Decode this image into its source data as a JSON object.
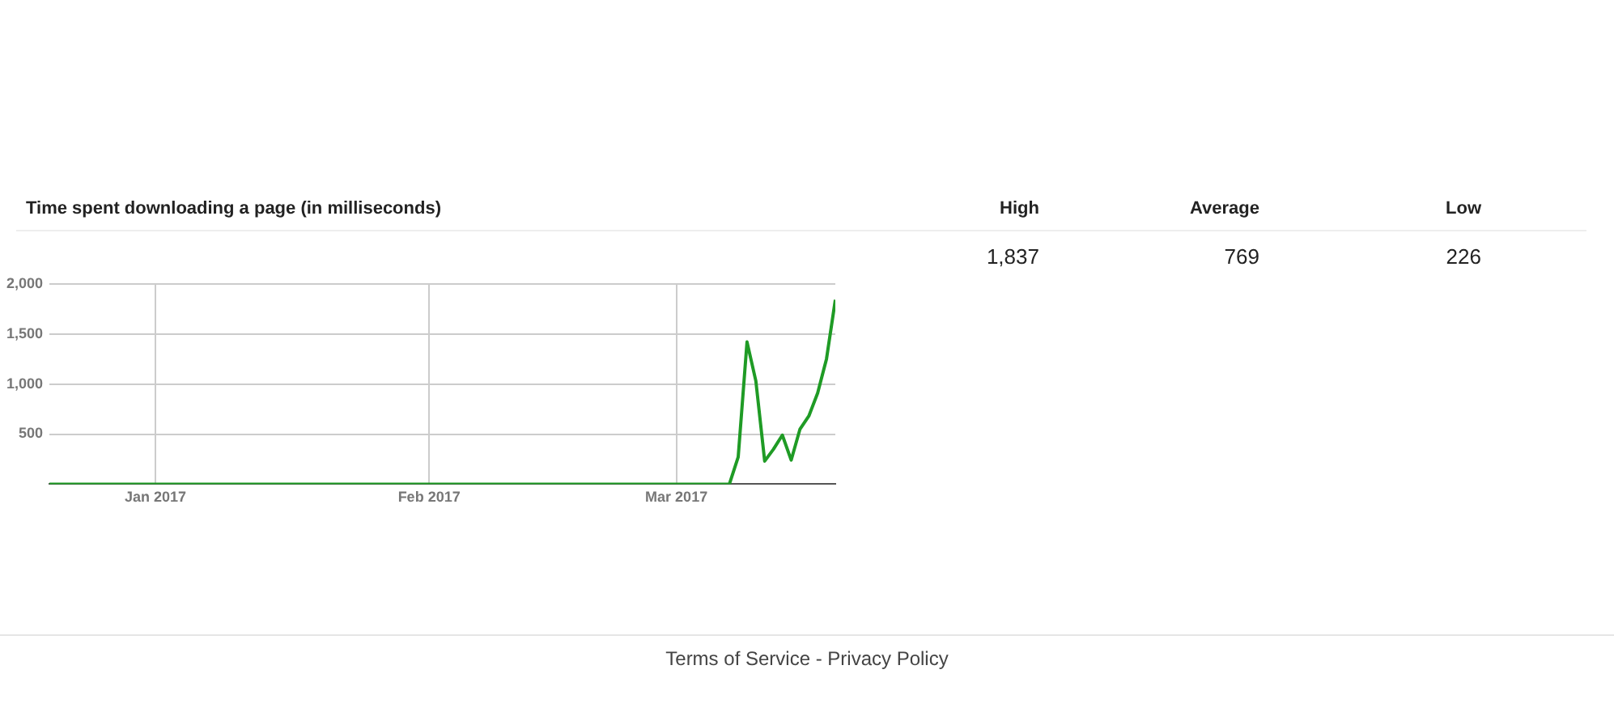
{
  "chart_data": [
    {
      "type": "line",
      "title": "Time spent downloading a page (in milliseconds)",
      "x": [
        "2016-12-20",
        "2017-03-07",
        "2017-03-08",
        "2017-03-09",
        "2017-03-10",
        "2017-03-11",
        "2017-03-12",
        "2017-03-13",
        "2017-03-14",
        "2017-03-15",
        "2017-03-16",
        "2017-03-17",
        "2017-03-18",
        "2017-03-19"
      ],
      "series": [
        {
          "color": "#1f9b25",
          "values": [
            0,
            0,
            270,
            1420,
            1030,
            230,
            350,
            490,
            240,
            550,
            680,
            910,
            1250,
            1840
          ]
        }
      ],
      "xlim": [
        "2016-12-20",
        "2017-03-19"
      ],
      "xticks": [
        {
          "value": "2017-01-01",
          "label": "Jan 2017"
        },
        {
          "value": "2017-02-01",
          "label": "Feb 2017"
        },
        {
          "value": "2017-03-01",
          "label": "Mar 2017"
        }
      ],
      "ylim": [
        0,
        2000
      ],
      "yticks": [
        {
          "value": 500,
          "label": "500"
        },
        {
          "value": 1000,
          "label": "1,000"
        },
        {
          "value": 1500,
          "label": "1,500"
        },
        {
          "value": 2000,
          "label": "2,000"
        }
      ],
      "grid": true,
      "legend": false,
      "marker": "none",
      "line_style": "solid",
      "annotations": [
        "Terms of Service - Privacy Policy"
      ]
    },
    {
      "type": "other",
      "categories": [
        "High",
        "Average",
        "Low"
      ],
      "annotations": [
        "1,837",
        "769",
        "226"
      ]
    }
  ]
}
